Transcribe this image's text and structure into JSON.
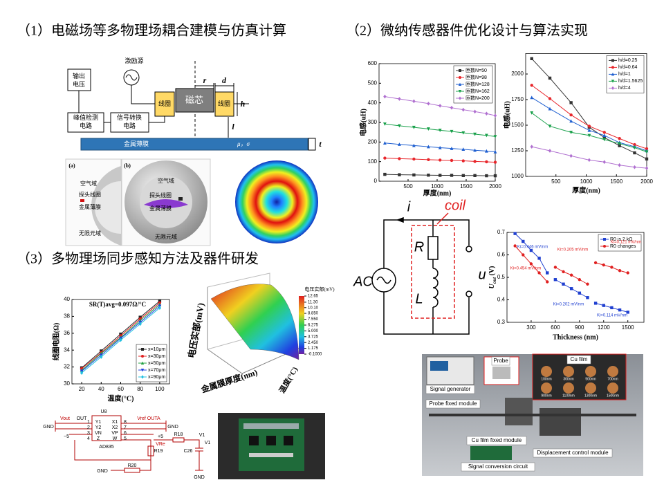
{
  "headings": [
    "（1）电磁场等多物理场耦合建模与仿真计算",
    "（2）微纳传感器件优化设计与算法实现",
    "（3）多物理场同步感知方法及器件研发"
  ],
  "sensor_diagram": {
    "labels": [
      "激励源",
      "输出",
      "电压",
      "线圈",
      "磁芯",
      "线圈",
      "r",
      "d",
      "h",
      "l",
      "峰值检测",
      "电路",
      "信号转换",
      "电路",
      "金属薄膜",
      "μ，σ",
      "t"
    ]
  },
  "simulation": {
    "labels": [
      "(a)",
      "(b)",
      "空气域",
      "探头线圈",
      "金属薄膜",
      "无限元域",
      "空气域",
      "探头线圈",
      "金属薄膜",
      "无限元域"
    ]
  },
  "circuit": {
    "labels": [
      "i",
      "coil",
      "R",
      "L",
      "AC",
      "u"
    ]
  },
  "charts": [
    {
      "type": "line",
      "xlabel": "厚度(nm)",
      "ylabel": "电感(uH)",
      "xlim": [
        0,
        2000
      ],
      "ylim": [
        0,
        600
      ],
      "xticks": [
        500,
        1000,
        1500,
        2000
      ],
      "yticks": [
        0,
        100,
        200,
        300,
        400,
        500,
        600
      ],
      "legend": "upper right",
      "x": [
        100,
        350,
        600,
        850,
        1050,
        1250,
        1450,
        1650,
        1850,
        2000
      ],
      "series": [
        {
          "name": "匝数N=50",
          "color": "#333333",
          "marker": "square",
          "values": [
            35,
            33,
            32,
            31,
            30,
            30,
            29,
            29,
            28,
            28
          ]
        },
        {
          "name": "匝数N=98",
          "color": "#e8262b",
          "marker": "circle",
          "values": [
            118,
            115,
            113,
            110,
            108,
            106,
            104,
            101,
            99,
            97
          ]
        },
        {
          "name": "匝数N=128",
          "color": "#1f5fd0",
          "marker": "triangle",
          "values": [
            195,
            188,
            182,
            176,
            171,
            167,
            163,
            158,
            154,
            150
          ]
        },
        {
          "name": "匝数N=162",
          "color": "#18a04a",
          "marker": "triangle-down",
          "values": [
            292,
            283,
            275,
            267,
            260,
            254,
            247,
            240,
            234,
            228
          ]
        },
        {
          "name": "匝数N=200",
          "color": "#b070d0",
          "marker": "diamond",
          "values": [
            432,
            420,
            408,
            396,
            385,
            375,
            365,
            355,
            345,
            335
          ]
        }
      ]
    },
    {
      "type": "line",
      "xlabel": "厚度(nm)",
      "ylabel": "电感(uH)",
      "xlim": [
        0,
        2000
      ],
      "ylim": [
        1000,
        2200
      ],
      "xticks": [
        500,
        1000,
        1500,
        2000
      ],
      "yticks": [
        1000,
        1250,
        1500,
        1750,
        2000
      ],
      "legend": "upper right",
      "x": [
        100,
        400,
        750,
        1050,
        1300,
        1550,
        1800,
        2000
      ],
      "series": [
        {
          "name": "h/d=0.25",
          "color": "#333333",
          "marker": "square",
          "values": [
            2150,
            1960,
            1720,
            1480,
            1380,
            1300,
            1230,
            1170
          ]
        },
        {
          "name": "h/d=0.64",
          "color": "#e8262b",
          "marker": "circle",
          "values": [
            1890,
            1760,
            1600,
            1490,
            1430,
            1370,
            1310,
            1270
          ]
        },
        {
          "name": "h/d=1",
          "color": "#1f5fd0",
          "marker": "triangle",
          "values": [
            1770,
            1660,
            1540,
            1450,
            1400,
            1330,
            1290,
            1250
          ]
        },
        {
          "name": "h/d=1.5625",
          "color": "#18a04a",
          "marker": "triangle-down",
          "values": [
            1620,
            1490,
            1430,
            1400,
            1360,
            1320,
            1280,
            1240
          ]
        },
        {
          "name": "h/d=4",
          "color": "#b070d0",
          "marker": "diamond",
          "values": [
            1290,
            1250,
            1200,
            1160,
            1140,
            1110,
            1090,
            1080
          ]
        }
      ]
    },
    {
      "type": "line",
      "xlabel": "Thickness (nm)",
      "ylabel": {
        "main": "U",
        "sub": "out",
        "unit": " (V)"
      },
      "xlim": [
        0,
        1700
      ],
      "ylim": [
        0.3,
        0.7
      ],
      "xticks": [
        300,
        600,
        900,
        1200,
        1500
      ],
      "yticks": [
        0.3,
        0.4,
        0.5,
        0.6,
        0.7
      ],
      "legend": "upper right",
      "x": [
        [
          100,
          200,
          300,
          400,
          500
        ],
        [
          600,
          700,
          800,
          900,
          1000
        ],
        [
          1100,
          1200,
          1300,
          1400,
          1500
        ]
      ],
      "series": [
        {
          "name": "R0 is 2 kΩ",
          "color": "#1f3fd0",
          "marker": "square",
          "values": [
            [
              0.695,
              0.66,
              0.62,
              0.585,
              0.52
            ],
            [
              0.49,
              0.47,
              0.45,
              0.43,
              0.41
            ],
            [
              0.385,
              0.375,
              0.365,
              0.355,
              0.345
            ]
          ]
        },
        {
          "name": "R0 changes",
          "color": "#e02020",
          "marker": "circle",
          "values": [
            [
              0.64,
              0.6,
              0.56,
              0.52,
              0.48
            ],
            [
              0.545,
              0.525,
              0.51,
              0.49,
              0.47
            ],
            [
              0.565,
              0.555,
              0.545,
              0.53,
              0.52
            ]
          ]
        }
      ],
      "annotations": [
        {
          "text": "Ki=0.446 mV/nm",
          "color": "#1f3fd0"
        },
        {
          "text": "Ki=0.202 mV/nm",
          "color": "#1f3fd0"
        },
        {
          "text": "Ki=0.114 mV/nm",
          "color": "#1f3fd0"
        },
        {
          "text": "Ki=0.454 mV/nm",
          "color": "#e02020"
        },
        {
          "text": "Ki=0.205 mV/nm",
          "color": "#e02020"
        },
        {
          "text": "Ki=0.121 mV/nm",
          "color": "#e02020"
        }
      ]
    },
    {
      "type": "line",
      "title": "SR(T)avg=0.097Ω/°C",
      "xlabel": "温度(°C)",
      "ylabel": "线圈电阻(Ω)",
      "xlim": [
        10,
        110
      ],
      "ylim": [
        30,
        40
      ],
      "xticks": [
        20,
        40,
        60,
        80,
        100
      ],
      "yticks": [
        30,
        32,
        34,
        36,
        38,
        40
      ],
      "legend": "lower right",
      "x": [
        20,
        40,
        60,
        80,
        100
      ],
      "series": [
        {
          "name": "x=10μm",
          "color": "#222222",
          "marker": "square",
          "values": [
            31.9,
            33.9,
            35.9,
            37.9,
            39.8
          ]
        },
        {
          "name": "x=30μm",
          "color": "#e02020",
          "marker": "circle",
          "values": [
            31.8,
            33.7,
            35.7,
            37.7,
            39.6
          ]
        },
        {
          "name": "x=50μm",
          "color": "#20a040",
          "marker": "triangle",
          "values": [
            31.6,
            33.6,
            35.5,
            37.5,
            39.4
          ]
        },
        {
          "name": "x=70μm",
          "color": "#2040e0",
          "marker": "triangle-down",
          "values": [
            31.5,
            33.4,
            35.4,
            37.3,
            39.2
          ]
        },
        {
          "name": "x=90μm",
          "color": "#20c0e0",
          "marker": "diamond",
          "values": [
            31.3,
            33.2,
            35.2,
            37.1,
            39.0
          ]
        }
      ]
    }
  ],
  "surface": {
    "colorbar_title": "电压实部(mV)",
    "zlabel": "电压实部(mV)",
    "xlabel": "金属膜厚度(nm)",
    "ylabel": "温度(°C)",
    "clim": [
      -0.1,
      12.65
    ],
    "colorbar_ticks": [
      {
        "value": 12.65,
        "label": "12.65"
      },
      {
        "value": 11.3,
        "label": "11.30"
      },
      {
        "value": 10.1,
        "label": "10.10"
      },
      {
        "value": 8.85,
        "label": "8.850"
      },
      {
        "value": 7.55,
        "label": "7.550"
      },
      {
        "value": 6.275,
        "label": "6.275"
      },
      {
        "value": 5.0,
        "label": "5.000"
      },
      {
        "value": 3.725,
        "label": "3.725"
      },
      {
        "value": 2.45,
        "label": "2.450"
      },
      {
        "value": 1.175,
        "label": "1.175"
      },
      {
        "value": -0.1,
        "label": "-0.1000"
      }
    ]
  },
  "schematic": {
    "labels": [
      "U8",
      "Vout",
      "OUT",
      "Vref OUTA",
      "GND",
      "GND",
      "1",
      "2",
      "3",
      "4",
      "Y1",
      "Y2",
      "VN",
      "Z",
      "X1",
      "X2",
      "VP",
      "W",
      "8",
      "7",
      "6",
      "5",
      "−5",
      "+5",
      "AD835",
      "R18",
      "R19",
      "R20",
      "C26",
      "V1",
      "V1",
      "VRe",
      "GND",
      "GND"
    ]
  },
  "photo": {
    "labels": [
      "Signal generator",
      "Probe",
      "Cu film",
      "100nm",
      "300nm",
      "500nm",
      "700nm",
      "900nm",
      "1100nm",
      "1300nm",
      "1500nm",
      "Probe fixed module",
      "Cu film fixed module",
      "Displacement control module",
      "Signal conversion circuit"
    ]
  }
}
